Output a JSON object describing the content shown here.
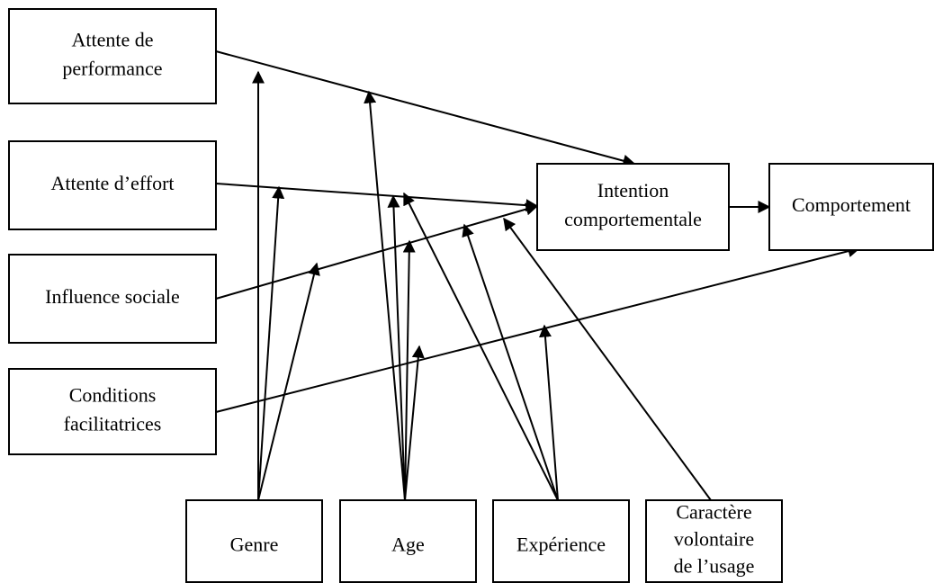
{
  "nodes": [
    {
      "lines": [
        "Attente de",
        "performance"
      ]
    },
    {
      "lines": [
        "Attente d’effort"
      ]
    },
    {
      "lines": [
        "Influence sociale"
      ]
    },
    {
      "lines": [
        "Conditions",
        "facilitatrices"
      ]
    },
    {
      "lines": [
        "Intention",
        "comportementale"
      ]
    },
    {
      "lines": [
        "Comportement"
      ]
    },
    {
      "lines": [
        "Genre"
      ]
    },
    {
      "lines": [
        "Age"
      ]
    },
    {
      "lines": [
        "Expérience"
      ]
    },
    {
      "lines": [
        "Caractère",
        "volontaire",
        "de l’usage"
      ]
    }
  ]
}
